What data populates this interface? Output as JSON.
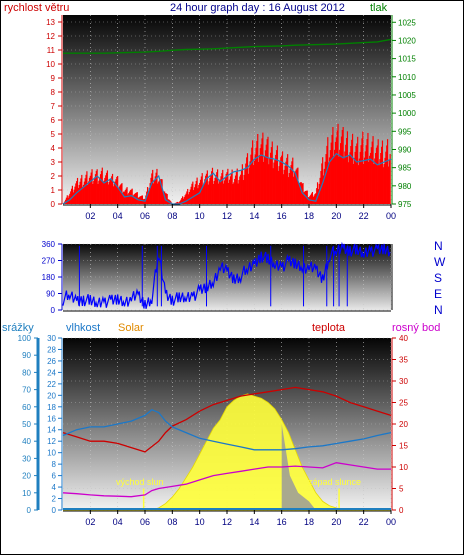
{
  "header": {
    "title": "24 hour graph day : 16 August 2012",
    "left_label": "rychlost větru",
    "right_label": "tlak"
  },
  "panel2_labels": {
    "compass": [
      "N",
      "W",
      "S",
      "E",
      "N"
    ]
  },
  "panel3_header": {
    "rain": "srážky",
    "humidity": "vlhkost",
    "solar": "Solar",
    "temp": "teplota",
    "dew": "rosný bod"
  },
  "annotations": {
    "sunrise": "východ slun",
    "sunset": "západ slunce"
  },
  "colors": {
    "wind": "#ff0000",
    "gust_line": "#1f7fbf",
    "pressure": "#008000",
    "direction": "#0000ff",
    "humidity": "#1c78c8",
    "solar": "#ffff3a",
    "temp": "#cc0000",
    "dew": "#cc00cc",
    "rain": "#1f7fbf",
    "title": "#00008b",
    "solar_label": "#e08a00"
  },
  "chart_data": [
    {
      "type": "line",
      "name": "wind-pressure",
      "x_ticks": [
        "02",
        "04",
        "06",
        "08",
        "10",
        "12",
        "14",
        "16",
        "18",
        "20",
        "22",
        "00"
      ],
      "y_left_ticks": [
        "0",
        "1",
        "2",
        "3",
        "4",
        "5",
        "6",
        "7",
        "8",
        "9",
        "10",
        "11",
        "12",
        "13"
      ],
      "y_right_ticks": [
        "975",
        "980",
        "985",
        "990",
        "995",
        "1000",
        "1005",
        "1010",
        "1015",
        "1020",
        "1025"
      ],
      "ylim_left": [
        0,
        13.5
      ],
      "ylim_right": [
        975,
        1027
      ],
      "xlim_hours": [
        0,
        24
      ],
      "series": [
        {
          "axis": "left",
          "hours": [
            0,
            0.5,
            1,
            1.5,
            2,
            2.5,
            3,
            3.5,
            4,
            4.5,
            5,
            5.5,
            6,
            6.5,
            7,
            7.5,
            8,
            8.5,
            9,
            9.5,
            10,
            10.5,
            11,
            11.5,
            12,
            12.5,
            13,
            13.5,
            14,
            14.5,
            15,
            15.5,
            16,
            16.5,
            17,
            17.5,
            18,
            18.5,
            19,
            19.5,
            20,
            20.5,
            21,
            21.5,
            22,
            22.5,
            23,
            23.5,
            24
          ],
          "values": [
            0,
            0.3,
            0.8,
            1.2,
            1.6,
            2.0,
            1.5,
            1.8,
            1.2,
            0.5,
            0.6,
            0.3,
            0.2,
            1.5,
            2.0,
            0.3,
            0,
            0,
            0.2,
            0.5,
            0.8,
            1.8,
            2.2,
            1.6,
            2.0,
            2.3,
            2.4,
            2.6,
            3.2,
            3.5,
            3.3,
            3.2,
            3.0,
            2.7,
            2.2,
            0.8,
            0.3,
            0.2,
            1.5,
            3.0,
            3.6,
            3.3,
            3.5,
            3.0,
            3.1,
            3.2,
            2.8,
            3.0,
            3.2
          ]
        },
        {
          "axis": "left",
          "hours": [
            0,
            0.5,
            1,
            1.5,
            2,
            2.5,
            3,
            3.5,
            4,
            4.5,
            5,
            5.5,
            6,
            6.5,
            7,
            7.5,
            8,
            8.5,
            9,
            9.5,
            10,
            10.5,
            11,
            11.5,
            12,
            12.5,
            13,
            13.5,
            14,
            14.5,
            15,
            15.5,
            16,
            16.5,
            17,
            17.5,
            18,
            18.5,
            19,
            19.5,
            20,
            20.5,
            21,
            21.5,
            22,
            22.5,
            23,
            23.5,
            24
          ],
          "values": [
            0,
            1.0,
            1.8,
            2.3,
            2.6,
            2.6,
            2.6,
            2.2,
            2.0,
            1.3,
            1.2,
            0.8,
            0.5,
            2.4,
            2.7,
            1.0,
            0,
            0.2,
            0.9,
            1.6,
            2.2,
            2.5,
            2.6,
            2.4,
            2.5,
            2.6,
            2.7,
            3.8,
            4.8,
            5.2,
            4.8,
            4.6,
            4.0,
            3.5,
            3.2,
            1.6,
            0.8,
            1.0,
            3.5,
            5.2,
            5.8,
            5.5,
            5.4,
            5.0,
            5.2,
            5.0,
            4.6,
            4.8,
            4.9
          ]
        },
        {
          "axis": "right",
          "hours": [
            0,
            1,
            2,
            3,
            4,
            5,
            6,
            7,
            8,
            9,
            10,
            11,
            12,
            13,
            14,
            15,
            16,
            17,
            18,
            19,
            20,
            21,
            22,
            23,
            24
          ],
          "values": [
            1016.5,
            1016.5,
            1016.5,
            1016.5,
            1016.6,
            1016.7,
            1016.8,
            1017,
            1017.3,
            1017.5,
            1017.6,
            1017.7,
            1017.9,
            1018.1,
            1018.3,
            1018.4,
            1018.5,
            1018.7,
            1018.8,
            1018.9,
            1019,
            1019.2,
            1019.4,
            1019.6,
            1020.3
          ]
        }
      ]
    },
    {
      "type": "line",
      "name": "wind-direction",
      "y_ticks": [
        "0",
        "90",
        "180",
        "270",
        "360"
      ],
      "ylim": [
        0,
        360
      ],
      "xlim_hours": [
        0,
        24
      ],
      "series": [
        {
          "hours": [
            0,
            0.5,
            1,
            1.5,
            2,
            2.5,
            3,
            3.5,
            4,
            4.5,
            5,
            5.5,
            6,
            6.5,
            7,
            7.5,
            8,
            8.5,
            9,
            9.5,
            10,
            10.5,
            11,
            11.5,
            12,
            12.5,
            13,
            13.5,
            14,
            14.5,
            15,
            15.5,
            16,
            16.5,
            17,
            17.5,
            18,
            18.5,
            19,
            19.5,
            20,
            20.5,
            21,
            21.5,
            22,
            22.5,
            23,
            23.5,
            24
          ],
          "values": [
            60,
            80,
            50,
            60,
            45,
            40,
            50,
            45,
            55,
            50,
            60,
            80,
            30,
            70,
            300,
            90,
            60,
            60,
            70,
            80,
            100,
            120,
            160,
            230,
            210,
            170,
            190,
            220,
            250,
            300,
            270,
            250,
            240,
            260,
            250,
            240,
            230,
            220,
            170,
            300,
            320,
            340,
            330,
            320,
            310,
            330,
            320,
            330,
            320
          ]
        }
      ]
    },
    {
      "type": "area",
      "name": "temperature-humidity-solar",
      "y_rain_ticks": [
        "0",
        "10",
        "20",
        "30",
        "40",
        "50",
        "60",
        "70",
        "80",
        "90",
        "100"
      ],
      "y_humidity_ticks": [
        "0",
        "2",
        "4",
        "6",
        "8",
        "10",
        "12",
        "14",
        "16",
        "18",
        "20",
        "22",
        "24",
        "26",
        "28",
        "30"
      ],
      "y_temp_ticks": [
        "0",
        "5",
        "10",
        "15",
        "20",
        "25",
        "30",
        "35",
        "40"
      ],
      "ylim_temp": [
        0,
        40
      ],
      "xlim_hours": [
        0,
        24
      ],
      "series": [
        {
          "hours": [
            0,
            1,
            2,
            3,
            4,
            5,
            5.5,
            6,
            6.5,
            7,
            7.5,
            8,
            8.5,
            9,
            9.5,
            10,
            10.5,
            11,
            11.5,
            12,
            12.5,
            13,
            13.5,
            14,
            14.5,
            15,
            15.5,
            16,
            16.5,
            17,
            17.5,
            18,
            18.5,
            19,
            19.5,
            20,
            20.5,
            21,
            22,
            23,
            24
          ],
          "values": [
            0,
            0,
            0,
            0,
            0,
            0,
            0,
            0,
            0,
            0.5,
            1.5,
            3,
            5,
            7.5,
            10,
            13,
            16,
            19,
            21,
            24,
            25.5,
            26.5,
            27,
            26.5,
            26,
            25,
            23.5,
            21,
            18,
            14,
            10,
            7,
            4,
            2,
            1,
            0.5,
            0,
            0,
            0,
            0,
            0
          ]
        },
        {
          "hours": [
            0,
            1,
            2,
            3,
            4,
            5,
            6,
            7,
            7.5,
            8,
            9,
            10,
            11,
            12,
            13,
            14,
            15,
            16,
            17,
            18,
            19,
            20,
            21,
            22,
            23,
            24
          ],
          "values": [
            18,
            17,
            16,
            16,
            15.5,
            14.5,
            13.5,
            16,
            18,
            19.5,
            21,
            23,
            24.5,
            25.5,
            26.5,
            27,
            27.5,
            28,
            28.5,
            28,
            27.5,
            26.5,
            25,
            24,
            23,
            22
          ]
        },
        {
          "hours": [
            0,
            1,
            2,
            3,
            4,
            5,
            6,
            6.5,
            7,
            8,
            9,
            10,
            11,
            12,
            13,
            14,
            15,
            16,
            17,
            18,
            19,
            20,
            21,
            22,
            23,
            24
          ],
          "values": [
            4,
            3.8,
            3.5,
            3.3,
            3.2,
            3.1,
            3.5,
            4.5,
            5,
            5.5,
            6,
            7,
            8,
            8.5,
            9,
            9.5,
            10,
            10,
            10.2,
            10,
            9.8,
            11,
            10.5,
            10,
            9.5,
            9.5
          ]
        },
        {
          "hours": [
            0,
            1,
            2,
            3,
            4,
            5,
            6,
            6.5,
            7,
            7.5,
            8,
            9,
            10,
            11,
            12,
            13,
            14,
            15,
            16,
            17,
            18,
            19,
            20,
            21,
            22,
            23,
            24
          ],
          "values": [
            13,
            14,
            14.5,
            14.5,
            15,
            15.5,
            16.5,
            17.5,
            17,
            15.5,
            14.5,
            13.5,
            12.5,
            12,
            11.5,
            11,
            10.5,
            10.5,
            10.5,
            10.7,
            11,
            11.2,
            11.6,
            12,
            12.4,
            13,
            13.5
          ]
        }
      ]
    }
  ]
}
